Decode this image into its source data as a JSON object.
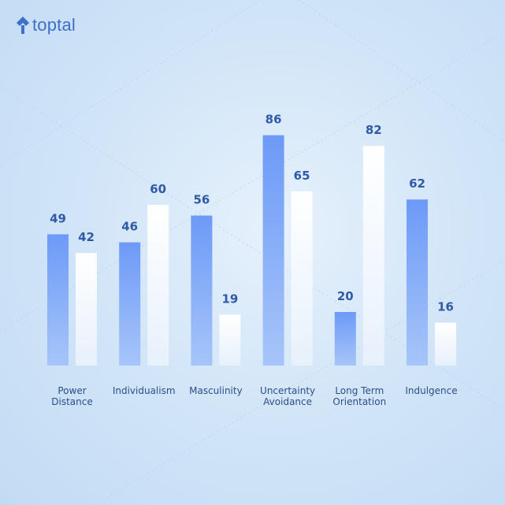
{
  "brand": {
    "name": "toptal",
    "icon": "toptal-logo-icon",
    "color": "#3f6fc7"
  },
  "colors": {
    "series_a_top": "#6d9af8",
    "series_a_bottom": "#a6c5f8",
    "series_b_top": "#ffffff",
    "series_b_bottom": "#e7f1fc",
    "value_text": "#2f5aa6",
    "category_text": "#2c4e8a"
  },
  "chart_data": {
    "type": "bar",
    "categories": [
      [
        "Power",
        "Distance"
      ],
      [
        "Individualism"
      ],
      [
        "Masculinity"
      ],
      [
        "Uncertainty",
        "Avoidance"
      ],
      [
        "Long Term",
        "Orientation"
      ],
      [
        "Indulgence"
      ]
    ],
    "series": [
      {
        "values": [
          49,
          46,
          56,
          86,
          20,
          62
        ]
      },
      {
        "values": [
          42,
          60,
          19,
          65,
          82,
          16
        ]
      }
    ],
    "ylim": [
      0,
      100
    ],
    "grid": false,
    "legend": "none"
  }
}
